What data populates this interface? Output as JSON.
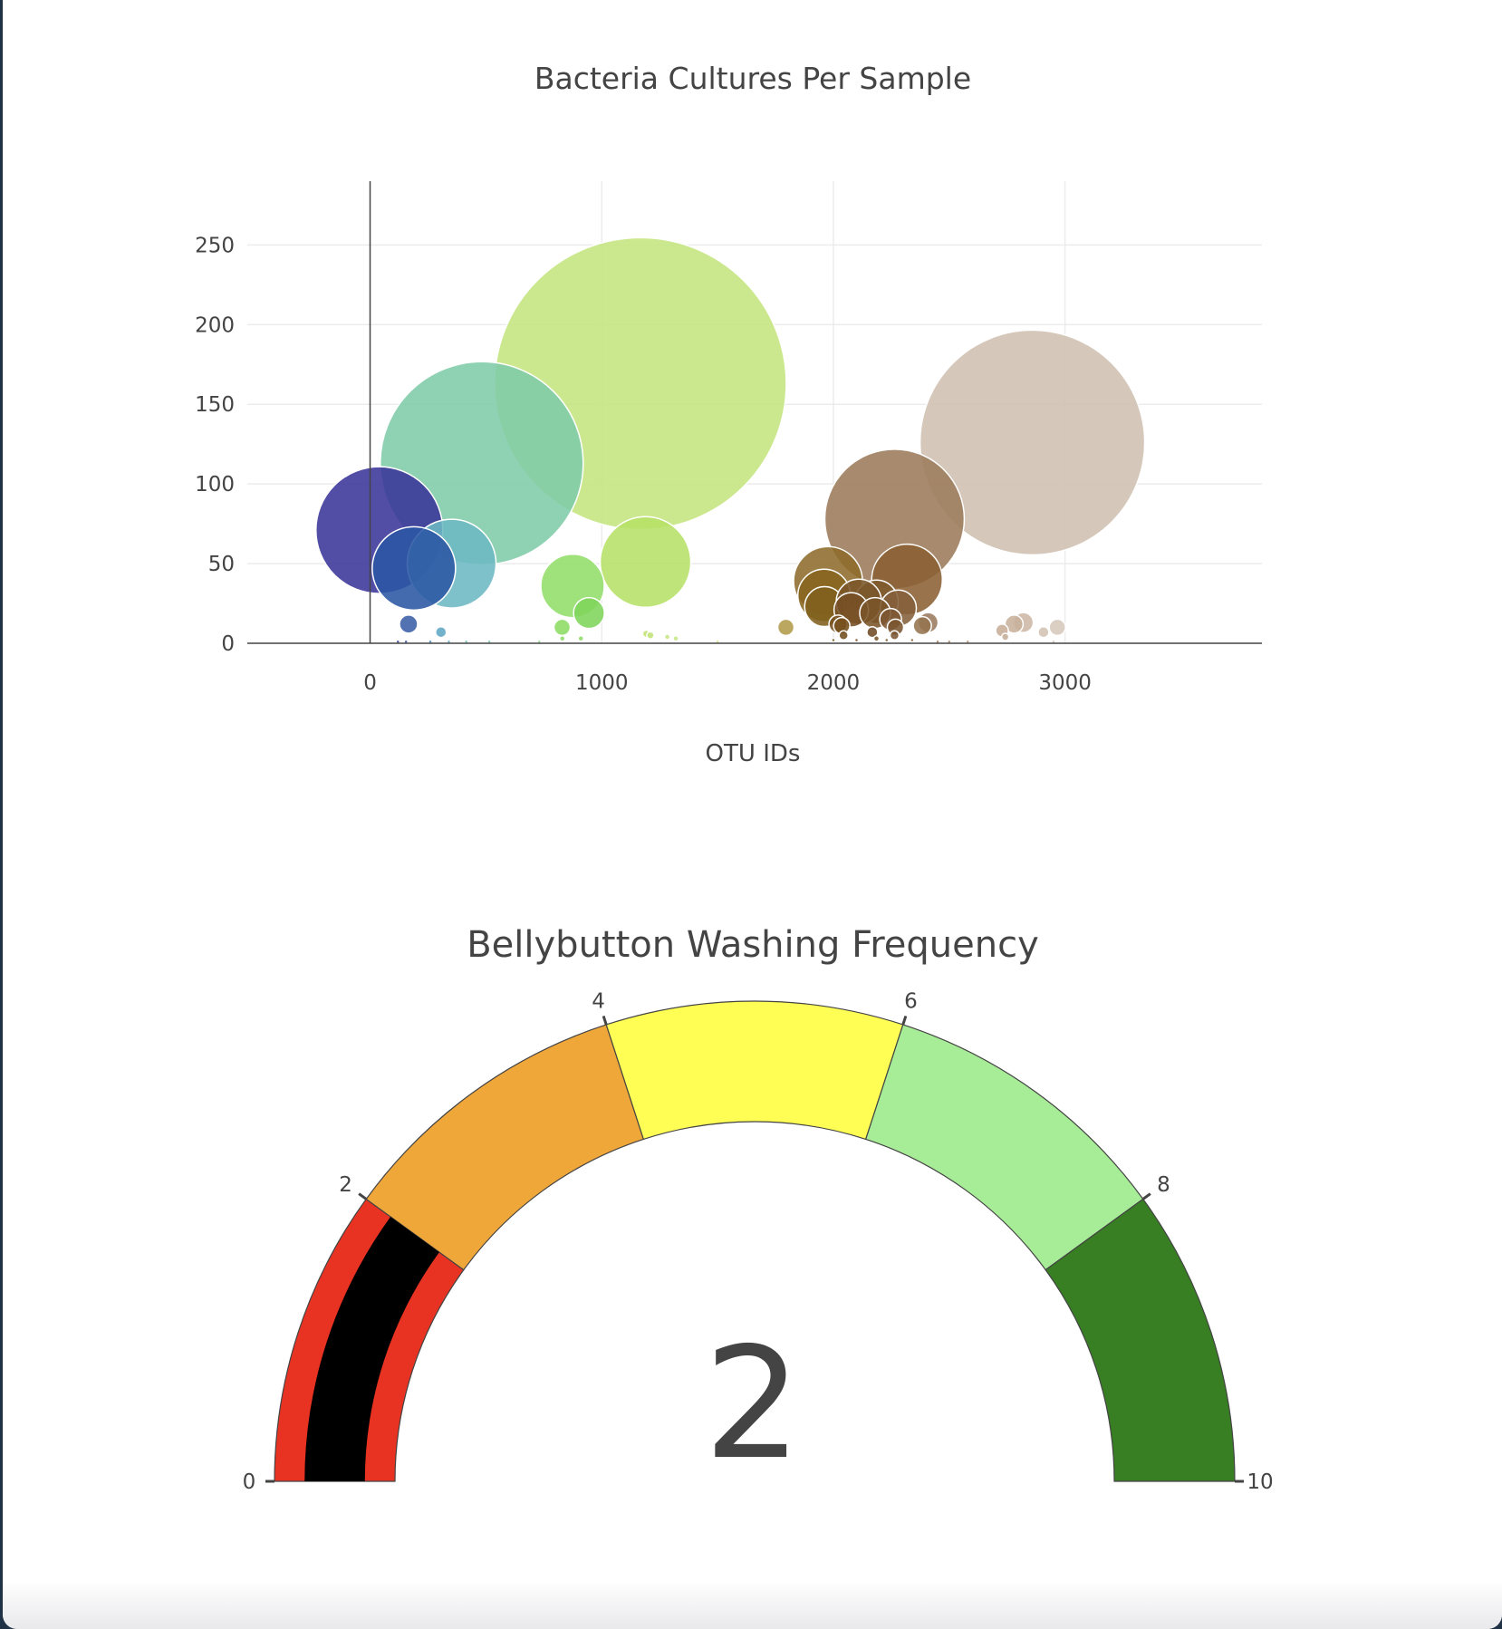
{
  "chart_data": [
    {
      "type": "scatter",
      "subtype": "bubble",
      "title": "Bacteria Cultures Per Sample",
      "xlabel": "OTU IDs",
      "ylabel": "",
      "xlim": [
        -530,
        3850
      ],
      "ylim": [
        0,
        290
      ],
      "x_ticks": [
        0,
        1000,
        2000,
        3000
      ],
      "y_ticks": [
        0,
        50,
        100,
        150,
        200,
        250
      ],
      "grid": true,
      "colorscale": "Earth",
      "points": [
        {
          "x": 1167,
          "y": 163,
          "r": 161,
          "color": "#c4e57f"
        },
        {
          "x": 2859,
          "y": 126,
          "r": 124,
          "color": "#cfc0b1"
        },
        {
          "x": 482,
          "y": 113,
          "r": 112,
          "color": "#80cba9"
        },
        {
          "x": 2264,
          "y": 78,
          "r": 77,
          "color": "#9c7b5b"
        },
        {
          "x": 40,
          "y": 71,
          "r": 70,
          "color": "#3a3499"
        },
        {
          "x": 1189,
          "y": 51,
          "r": 50,
          "color": "#b6e067"
        },
        {
          "x": 352,
          "y": 50,
          "r": 49,
          "color": "#6cb8c3"
        },
        {
          "x": 189,
          "y": 47,
          "r": 46,
          "color": "#2b56a4"
        },
        {
          "x": 2318,
          "y": 40,
          "r": 39,
          "color": "#8a6033"
        },
        {
          "x": 1977,
          "y": 39,
          "r": 38,
          "color": "#8d6b2b"
        },
        {
          "x": 874,
          "y": 36,
          "r": 35,
          "color": "#92de6a"
        },
        {
          "x": 1960,
          "y": 30,
          "r": 29,
          "color": "#876520"
        },
        {
          "x": 1962,
          "y": 23,
          "r": 22,
          "color": "#80601d"
        },
        {
          "x": 2186,
          "y": 26,
          "r": 24,
          "color": "#7e5a2c"
        },
        {
          "x": 2110,
          "y": 26,
          "r": 25,
          "color": "#7a552a"
        },
        {
          "x": 2280,
          "y": 22,
          "r": 20,
          "color": "#84603a"
        },
        {
          "x": 2077,
          "y": 21,
          "r": 19,
          "color": "#764f24"
        },
        {
          "x": 2180,
          "y": 19,
          "r": 17,
          "color": "#7a5429"
        },
        {
          "x": 945,
          "y": 19,
          "r": 17,
          "color": "#7fd55a"
        },
        {
          "x": 2247,
          "y": 15,
          "r": 12,
          "color": "#7d5733"
        },
        {
          "x": 2409,
          "y": 13,
          "r": 11,
          "color": "#9a7a5f"
        },
        {
          "x": 2820,
          "y": 13,
          "r": 11,
          "color": "#cdb7a5"
        },
        {
          "x": 2384,
          "y": 11,
          "r": 10,
          "color": "#95744f"
        },
        {
          "x": 2780,
          "y": 12,
          "r": 10,
          "color": "#c8b09b"
        },
        {
          "x": 2020,
          "y": 12,
          "r": 10,
          "color": "#79511f"
        },
        {
          "x": 2036,
          "y": 11,
          "r": 9,
          "color": "#76501e"
        },
        {
          "x": 2268,
          "y": 10,
          "r": 9,
          "color": "#7a5530"
        },
        {
          "x": 166,
          "y": 12,
          "r": 10,
          "color": "#3a5ea7"
        },
        {
          "x": 1795,
          "y": 10,
          "r": 9,
          "color": "#b39b4a"
        },
        {
          "x": 2967,
          "y": 10,
          "r": 9,
          "color": "#d6c8bb"
        },
        {
          "x": 2728,
          "y": 8,
          "r": 7,
          "color": "#c7ad99"
        },
        {
          "x": 829,
          "y": 10,
          "r": 9,
          "color": "#8ddc63"
        },
        {
          "x": 306,
          "y": 7,
          "r": 6,
          "color": "#5ea7c4"
        },
        {
          "x": 2907,
          "y": 7,
          "r": 6,
          "color": "#d2c2b3"
        },
        {
          "x": 2168,
          "y": 7,
          "r": 6,
          "color": "#6e4a24"
        },
        {
          "x": 2044,
          "y": 5,
          "r": 5,
          "color": "#744d1e"
        },
        {
          "x": 2264,
          "y": 5,
          "r": 5,
          "color": "#7b5632"
        },
        {
          "x": 2742,
          "y": 4,
          "r": 4,
          "color": "#c6ad98"
        },
        {
          "x": 1192,
          "y": 6,
          "r": 4,
          "color": "#c1e374"
        },
        {
          "x": 1210,
          "y": 5,
          "r": 4,
          "color": "#c3e478"
        },
        {
          "x": 1283,
          "y": 4,
          "r": 3,
          "color": "#c6e681"
        },
        {
          "x": 1320,
          "y": 3,
          "r": 3,
          "color": "#c8e785"
        },
        {
          "x": 910,
          "y": 3,
          "r": 3,
          "color": "#8fdc66"
        },
        {
          "x": 830,
          "y": 3,
          "r": 3,
          "color": "#8edc64"
        },
        {
          "x": 2186,
          "y": 3,
          "r": 3,
          "color": "#7a5429"
        },
        {
          "x": 2340,
          "y": 2,
          "r": 2,
          "color": "#8c6a45"
        },
        {
          "x": 2100,
          "y": 2,
          "r": 2,
          "color": "#785129"
        },
        {
          "x": 2000,
          "y": 2,
          "r": 2,
          "color": "#7e5b1f"
        },
        {
          "x": 2230,
          "y": 2,
          "r": 2,
          "color": "#7c572f"
        },
        {
          "x": 2580,
          "y": 1,
          "r": 2,
          "color": "#b79b84"
        },
        {
          "x": 2500,
          "y": 1,
          "r": 2,
          "color": "#ac8e74"
        },
        {
          "x": 2950,
          "y": 1,
          "r": 2,
          "color": "#d5c6b8"
        },
        {
          "x": 120,
          "y": 1,
          "r": 2,
          "color": "#3b4aa3"
        },
        {
          "x": 155,
          "y": 1,
          "r": 2,
          "color": "#3a55a6"
        },
        {
          "x": 260,
          "y": 1,
          "r": 2,
          "color": "#4e8bbb"
        },
        {
          "x": 340,
          "y": 1,
          "r": 2,
          "color": "#68b2c2"
        },
        {
          "x": 415,
          "y": 1,
          "r": 2,
          "color": "#79c3b6"
        },
        {
          "x": 515,
          "y": 1,
          "r": 2,
          "color": "#83ccac"
        },
        {
          "x": 730,
          "y": 1,
          "r": 2,
          "color": "#93d999"
        },
        {
          "x": 1500,
          "y": 1,
          "r": 2,
          "color": "#cde788"
        },
        {
          "x": 2450,
          "y": 1,
          "r": 2,
          "color": "#a2836a"
        }
      ]
    },
    {
      "type": "gauge",
      "title": "Bellybutton Washing Frequency",
      "value": 2,
      "range": [
        0,
        10
      ],
      "ticks": [
        0,
        2,
        4,
        6,
        8,
        10
      ],
      "bar_color": "#000000",
      "steps": [
        {
          "range": [
            0,
            2
          ],
          "color": "#e83323"
        },
        {
          "range": [
            2,
            4
          ],
          "color": "#f0a73a"
        },
        {
          "range": [
            4,
            6
          ],
          "color": "#fffe54"
        },
        {
          "range": [
            6,
            8
          ],
          "color": "#a7ec96"
        },
        {
          "range": [
            8,
            10
          ],
          "color": "#387e22"
        }
      ]
    }
  ]
}
